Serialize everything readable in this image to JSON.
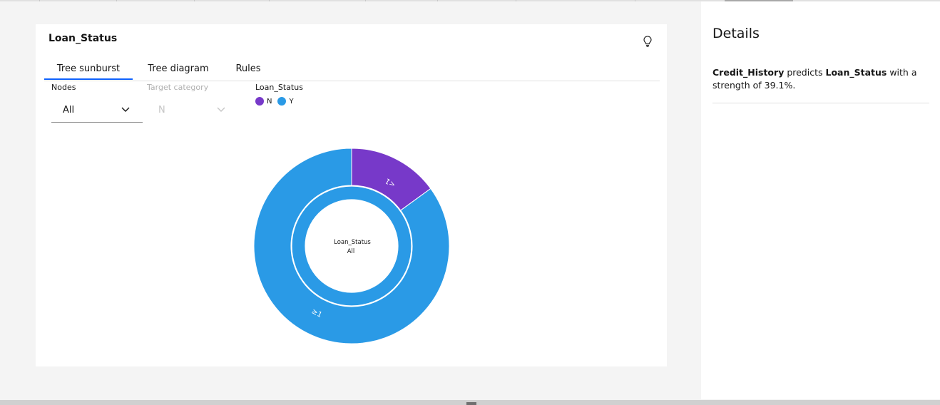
{
  "card": {
    "title": "Loan_Status",
    "tabs": [
      {
        "label": "Tree sunburst",
        "active": true
      },
      {
        "label": "Tree diagram",
        "active": false
      },
      {
        "label": "Rules",
        "active": false
      }
    ],
    "nodes": {
      "label": "Nodes",
      "value": "All"
    },
    "target": {
      "label": "Target category",
      "value": "N"
    },
    "legend": {
      "title": "Loan_Status",
      "items": [
        {
          "label": "N",
          "color": "#7739c9"
        },
        {
          "label": "Y",
          "color": "#2a9ae6"
        }
      ]
    }
  },
  "chart_data": {
    "type": "sunburst",
    "center": {
      "title": "Loan_Status",
      "subtitle": "All"
    },
    "inner_ring": {
      "label": "Credit_History",
      "value": 1.0,
      "color": "#2a9ae6"
    },
    "outer_ring": [
      {
        "label": "<1",
        "fraction": 0.15,
        "color": "#7739c9"
      },
      {
        "label": "≥1",
        "fraction": 0.85,
        "color": "#2a9ae6"
      }
    ]
  },
  "details": {
    "title": "Details",
    "predictor": "Credit_History",
    "text1": " predicts ",
    "target": "Loan_Status",
    "text2": " with a strength of 39.1%."
  }
}
